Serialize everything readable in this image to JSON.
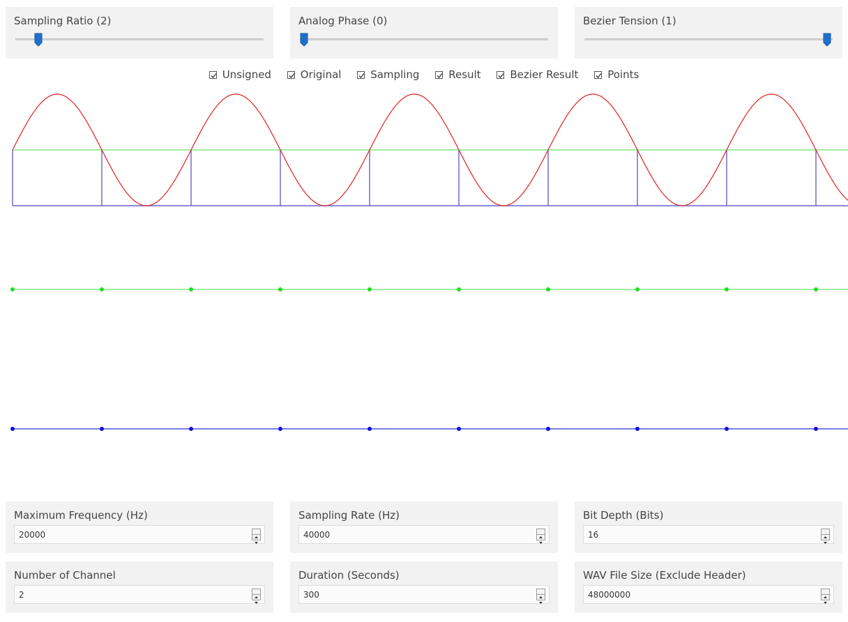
{
  "sliders": [
    {
      "id": "sampling-ratio",
      "label": "Sampling Ratio (2)",
      "value": 2,
      "fraction": 0.09
    },
    {
      "id": "analog-phase",
      "label": "Analog Phase (0)",
      "value": 0,
      "fraction": 0.0
    },
    {
      "id": "bezier-tension",
      "label": "Bezier Tension (1)",
      "value": 1,
      "fraction": 1.0
    }
  ],
  "checkboxes": [
    {
      "label": "Unsigned",
      "checked": true
    },
    {
      "label": "Original",
      "checked": true
    },
    {
      "label": "Sampling",
      "checked": true
    },
    {
      "label": "Result",
      "checked": true
    },
    {
      "label": "Bezier Result",
      "checked": true
    },
    {
      "label": "Points",
      "checked": true
    }
  ],
  "fields": [
    {
      "label": "Maximum Frequency (Hz)",
      "value": "20000"
    },
    {
      "label": "Sampling Rate (Hz)",
      "value": "40000"
    },
    {
      "label": "Bit Depth (Bits)",
      "value": "16"
    },
    {
      "label": "Number of Channel",
      "value": "2"
    },
    {
      "label": "Duration (Seconds)",
      "value": "300"
    },
    {
      "label": "WAV File Size (Exclude Header)",
      "value": "48000000"
    }
  ],
  "colors": {
    "original": "#e02020",
    "sampling": "#6a5fc8",
    "result": "#7fe87f",
    "result_points": "#22dd22",
    "bezier": "#5050e0",
    "bezier_points": "#1010dd",
    "slider_thumb": "#1f6fcf"
  },
  "chart_data": {
    "type": "line",
    "title": "",
    "sampling_ratio": 2,
    "analog_phase": 0,
    "bezier_tension": 1,
    "sample_count": 10,
    "series": [
      {
        "id": "original",
        "values": "sine, peak at +1, trough at -1, samples at zero crossings"
      },
      {
        "id": "result",
        "values": [
          0,
          0,
          0,
          0,
          0,
          0,
          0,
          0,
          0,
          0
        ]
      },
      {
        "id": "bezier_result",
        "values": [
          0,
          0,
          0,
          0,
          0,
          0,
          0,
          0,
          0,
          0
        ]
      }
    ]
  }
}
